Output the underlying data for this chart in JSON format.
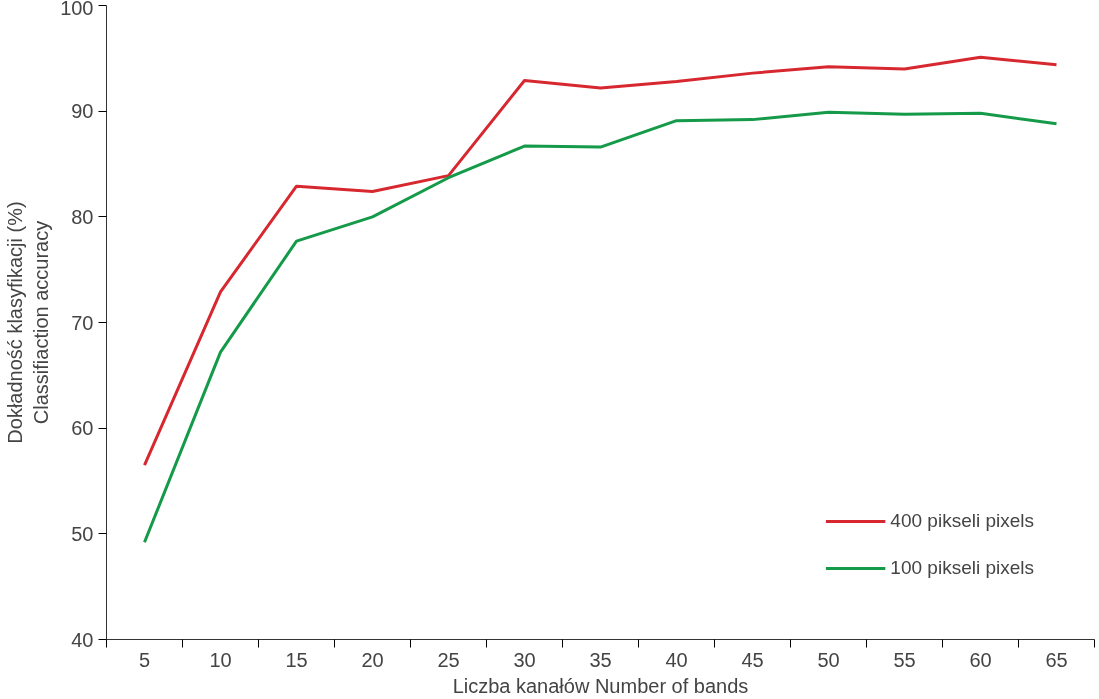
{
  "chart_data": {
    "type": "line",
    "xlabel": "Liczba kanałów Number of bands",
    "ylabel": "Dokładność klasyfikacji (%)\nClassifiaction accuracy",
    "categories": [
      "5",
      "10",
      "15",
      "20",
      "25",
      "30",
      "35",
      "40",
      "45",
      "50",
      "55",
      "60",
      "65"
    ],
    "series": [
      {
        "name": "400 pikseli pixels",
        "color": "#d7282f",
        "values": [
          56.5,
          72.9,
          82.9,
          82.4,
          83.9,
          92.9,
          92.2,
          92.8,
          93.6,
          94.2,
          94.0,
          95.1,
          94.4
        ]
      },
      {
        "name": "100 pikseli pixels",
        "color": "#149a48",
        "values": [
          49.2,
          67.2,
          77.7,
          80.0,
          83.7,
          86.7,
          86.6,
          89.1,
          89.2,
          89.9,
          89.7,
          89.8,
          88.8
        ]
      }
    ],
    "ylim": [
      40,
      100
    ],
    "yticks": [
      40,
      50,
      60,
      70,
      80,
      90,
      100
    ],
    "grid": false,
    "legend": "bottom right",
    "marker": "none",
    "line_style": "solid"
  }
}
